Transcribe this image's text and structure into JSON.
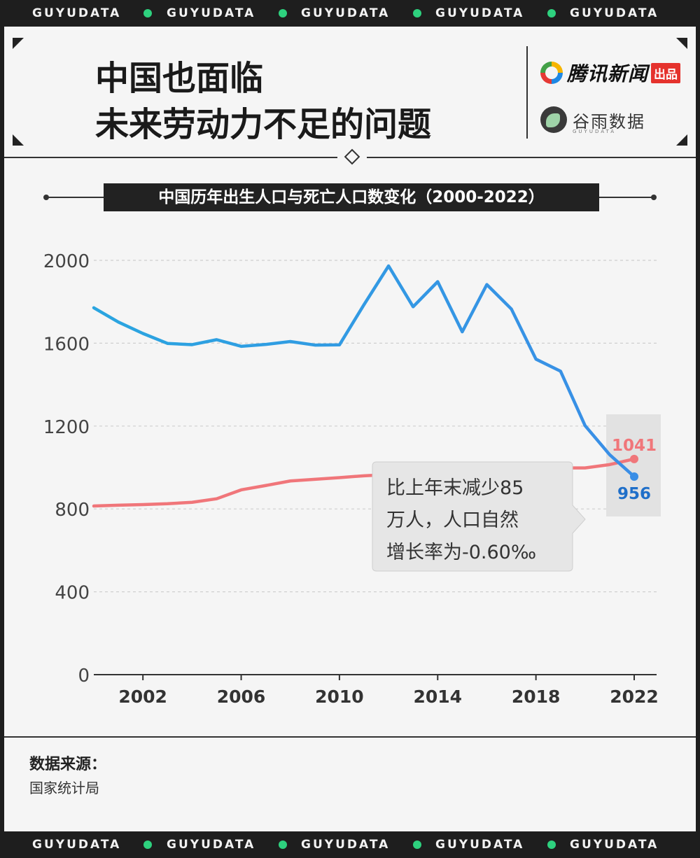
{
  "band_text": "GUYUDATA",
  "header": {
    "title_line1": "中国也面临",
    "title_line2": "未来劳动力不足的问题",
    "brand1": "腾讯新闻",
    "brand1_badge": "出品",
    "brand2": "谷雨数据",
    "brand2_sub": "GUYUDATA"
  },
  "colors": {
    "births": "#3a8ee6",
    "births_light": "#2aa5e0",
    "deaths": "#f0767a",
    "accent_green": "#2ed17e"
  },
  "annotation": {
    "line1": "比上年末减少85",
    "line2": "万人，人口自然",
    "line3": "增长率为-0.60‰"
  },
  "chart_data": {
    "type": "line",
    "title": "中国历年出生人口与死亡人口数变化（2000-2022）",
    "x": [
      2000,
      2001,
      2002,
      2003,
      2004,
      2005,
      2006,
      2007,
      2008,
      2009,
      2010,
      2011,
      2012,
      2013,
      2014,
      2015,
      2016,
      2017,
      2018,
      2019,
      2020,
      2021,
      2022
    ],
    "x_ticks": [
      2002,
      2006,
      2010,
      2014,
      2018,
      2022
    ],
    "y_ticks": [
      0,
      400,
      800,
      1200,
      1600,
      2000
    ],
    "ylim": [
      0,
      2000
    ],
    "xlim": [
      2000,
      2022
    ],
    "grid": "horizontal-dashed",
    "series": [
      {
        "key": "births",
        "values": [
          1771,
          1702,
          1647,
          1599,
          1593,
          1617,
          1585,
          1594,
          1608,
          1591,
          1592,
          1786,
          1973,
          1776,
          1897,
          1655,
          1883,
          1765,
          1523,
          1465,
          1202,
          1062,
          956
        ],
        "end_label": "956"
      },
      {
        "key": "deaths",
        "values": [
          814,
          818,
          821,
          825,
          832,
          849,
          892,
          913,
          935,
          943,
          951,
          960,
          966,
          972,
          977,
          975,
          977,
          986,
          993,
          998,
          998,
          1014,
          1041
        ],
        "end_label": "1041"
      }
    ]
  },
  "source": {
    "label": "数据来源：",
    "value": "国家统计局"
  }
}
